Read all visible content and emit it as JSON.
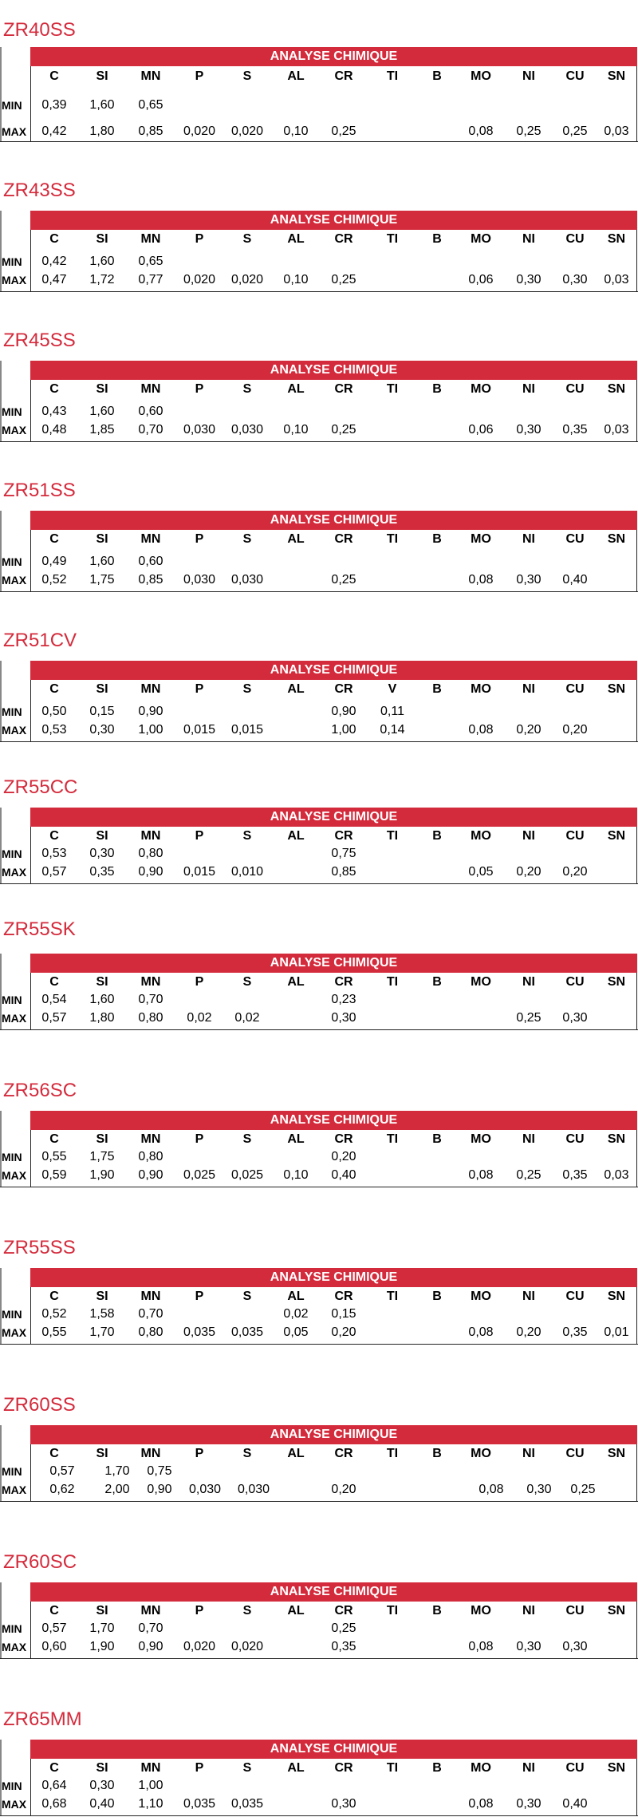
{
  "band_label": "ANALYSE CHIMIQUE",
  "row_labels": {
    "min": "MIN",
    "max": "MAX"
  },
  "columns": [
    "C",
    "SI",
    "MN",
    "P",
    "S",
    "AL",
    "CR",
    "TI",
    "B",
    "MO",
    "NI",
    "CU",
    "SN"
  ],
  "grades": [
    {
      "name": "ZR40SS",
      "headers": [
        "C",
        "SI",
        "MN",
        "P",
        "S",
        "AL",
        "CR",
        "TI",
        "B",
        "MO",
        "NI",
        "CU",
        "SN"
      ],
      "min": [
        "0,39",
        "1,60",
        "0,65",
        "",
        "",
        "",
        "",
        "",
        "",
        "",
        "",
        "",
        ""
      ],
      "max": [
        "0,42",
        "1,80",
        "0,85",
        "0,020",
        "0,020",
        "0,10",
        "0,25",
        "",
        "",
        "0,08",
        "0,25",
        "0,25",
        "0,03"
      ]
    },
    {
      "name": "ZR43SS",
      "headers": [
        "C",
        "SI",
        "MN",
        "P",
        "S",
        "AL",
        "CR",
        "TI",
        "B",
        "MO",
        "NI",
        "CU",
        "SN"
      ],
      "min": [
        "0,42",
        "1,60",
        "0,65",
        "",
        "",
        "",
        "",
        "",
        "",
        "",
        "",
        "",
        ""
      ],
      "max": [
        "0,47",
        "1,72",
        "0,77",
        "0,020",
        "0,020",
        "0,10",
        "0,25",
        "",
        "",
        "0,06",
        "0,30",
        "0,30",
        "0,03"
      ]
    },
    {
      "name": "ZR45SS",
      "headers": [
        "C",
        "SI",
        "MN",
        "P",
        "S",
        "AL",
        "CR",
        "TI",
        "B",
        "MO",
        "NI",
        "CU",
        "SN"
      ],
      "min": [
        "0,43",
        "1,60",
        "0,60",
        "",
        "",
        "",
        "",
        "",
        "",
        "",
        "",
        "",
        ""
      ],
      "max": [
        "0,48",
        "1,85",
        "0,70",
        "0,030",
        "0,030",
        "0,10",
        "0,25",
        "",
        "",
        "0,06",
        "0,30",
        "0,35",
        "0,03"
      ]
    },
    {
      "name": "ZR51SS",
      "headers": [
        "C",
        "SI",
        "MN",
        "P",
        "S",
        "AL",
        "CR",
        "TI",
        "B",
        "MO",
        "NI",
        "CU",
        "SN"
      ],
      "min": [
        "0,49",
        "1,60",
        "0,60",
        "",
        "",
        "",
        "",
        "",
        "",
        "",
        "",
        "",
        ""
      ],
      "max": [
        "0,52",
        "1,75",
        "0,85",
        "0,030",
        "0,030",
        "",
        "0,25",
        "",
        "",
        "0,08",
        "0,30",
        "0,40",
        ""
      ]
    },
    {
      "name": "ZR51CV",
      "headers": [
        "C",
        "SI",
        "MN",
        "P",
        "S",
        "AL",
        "CR",
        "V",
        "B",
        "MO",
        "NI",
        "CU",
        "SN"
      ],
      "min": [
        "0,50",
        "0,15",
        "0,90",
        "",
        "",
        "",
        "0,90",
        "0,11",
        "",
        "",
        "",
        "",
        ""
      ],
      "max": [
        "0,53",
        "0,30",
        "1,00",
        "0,015",
        "0,015",
        "",
        "1,00",
        "0,14",
        "",
        "0,08",
        "0,20",
        "0,20",
        ""
      ]
    },
    {
      "name": "ZR55CC",
      "headers": [
        "C",
        "SI",
        "MN",
        "P",
        "S",
        "AL",
        "CR",
        "TI",
        "B",
        "MO",
        "NI",
        "CU",
        "SN"
      ],
      "min": [
        "0,53",
        "0,30",
        "0,80",
        "",
        "",
        "",
        "0,75",
        "",
        "",
        "",
        "",
        "",
        ""
      ],
      "max": [
        "0,57",
        "0,35",
        "0,90",
        "0,015",
        "0,010",
        "",
        "0,85",
        "",
        "",
        "0,05",
        "0,20",
        "0,20",
        ""
      ]
    },
    {
      "name": "ZR55SK",
      "headers": [
        "C",
        "SI",
        "MN",
        "P",
        "S",
        "AL",
        "CR",
        "TI",
        "B",
        "MO",
        "NI",
        "CU",
        "SN"
      ],
      "min": [
        "0,54",
        "1,60",
        "0,70",
        "",
        "",
        "",
        "0,23",
        "",
        "",
        "",
        "",
        "",
        ""
      ],
      "max": [
        "0,57",
        "1,80",
        "0,80",
        "0,02",
        "0,02",
        "",
        "0,30",
        "",
        "",
        "",
        "0,25",
        "0,30",
        ""
      ]
    },
    {
      "name": "ZR56SC",
      "headers": [
        "C",
        "SI",
        "MN",
        "P",
        "S",
        "AL",
        "CR",
        "TI",
        "B",
        "MO",
        "NI",
        "CU",
        "SN"
      ],
      "min": [
        "0,55",
        "1,75",
        "0,80",
        "",
        "",
        "",
        "0,20",
        "",
        "",
        "",
        "",
        "",
        ""
      ],
      "max": [
        "0,59",
        "1,90",
        "0,90",
        "0,025",
        "0,025",
        "0,10",
        "0,40",
        "",
        "",
        "0,08",
        "0,25",
        "0,35",
        "0,03"
      ]
    },
    {
      "name": "ZR55SS",
      "headers": [
        "C",
        "SI",
        "MN",
        "P",
        "S",
        "AL",
        "CR",
        "TI",
        "B",
        "MO",
        "NI",
        "CU",
        "SN"
      ],
      "min": [
        "0,52",
        "1,58",
        "0,70",
        "",
        "",
        "0,02",
        "0,15",
        "",
        "",
        "",
        "",
        "",
        ""
      ],
      "max": [
        "0,55",
        "1,70",
        "0,80",
        "0,035",
        "0,035",
        "0,05",
        "0,20",
        "",
        "",
        "0,08",
        "0,20",
        "0,35",
        "0,01"
      ]
    },
    {
      "name": "ZR60SS",
      "headers": [
        "C",
        "SI",
        "MN",
        "P",
        "S",
        "AL",
        "CR",
        "TI",
        "B",
        "MO",
        "NI",
        "CU",
        "SN"
      ],
      "min": [
        "0,57",
        "1,70",
        "0,75",
        "",
        "",
        "",
        "",
        "",
        "",
        "",
        "",
        "",
        ""
      ],
      "max": [
        "0,62",
        "2,00",
        "0,90",
        "0,030",
        "0,030",
        "",
        "0,20",
        "",
        "",
        "0,08",
        "0,30",
        "0,25",
        ""
      ]
    },
    {
      "name": "ZR60SC",
      "headers": [
        "C",
        "SI",
        "MN",
        "P",
        "S",
        "AL",
        "CR",
        "TI",
        "B",
        "MO",
        "NI",
        "CU",
        "SN"
      ],
      "min": [
        "0,57",
        "1,70",
        "0,70",
        "",
        "",
        "",
        "0,25",
        "",
        "",
        "",
        "",
        "",
        ""
      ],
      "max": [
        "0,60",
        "1,90",
        "0,90",
        "0,020",
        "0,020",
        "",
        "0,35",
        "",
        "",
        "0,08",
        "0,30",
        "0,30",
        ""
      ]
    },
    {
      "name": "ZR65MM",
      "headers": [
        "C",
        "SI",
        "MN",
        "P",
        "S",
        "AL",
        "CR",
        "TI",
        "B",
        "MO",
        "NI",
        "CU",
        "SN"
      ],
      "min": [
        "0,64",
        "0,30",
        "1,00",
        "",
        "",
        "",
        "",
        "",
        "",
        "",
        "",
        "",
        ""
      ],
      "max": [
        "0,68",
        "0,40",
        "1,10",
        "0,035",
        "0,035",
        "",
        "0,30",
        "",
        "",
        "0,08",
        "0,30",
        "0,40",
        ""
      ]
    }
  ]
}
